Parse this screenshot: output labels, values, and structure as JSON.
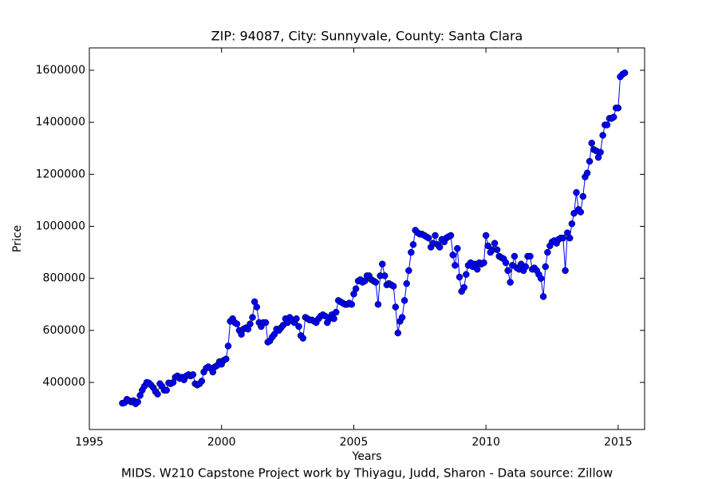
{
  "chart_data": {
    "type": "line",
    "title": "ZIP: 94087, City: Sunnyvale, County: Santa Clara",
    "xlabel": "Years",
    "ylabel": "Price",
    "footnote": "MIDS. W210 Capstone Project work by Thiyagu, Judd, Sharon  -  Data source: Zillow",
    "xlim": [
      1995,
      2016
    ],
    "ylim": [
      219000,
      1686000
    ],
    "xticks": [
      1995,
      2000,
      2005,
      2010,
      2015
    ],
    "yticks": [
      400000,
      600000,
      800000,
      1000000,
      1200000,
      1400000,
      1600000
    ],
    "x": [
      1996.25,
      1996.33,
      1996.42,
      1996.5,
      1996.58,
      1996.67,
      1996.75,
      1996.83,
      1996.92,
      1997,
      1997.08,
      1997.17,
      1997.25,
      1997.33,
      1997.42,
      1997.5,
      1997.58,
      1997.67,
      1997.75,
      1997.83,
      1997.92,
      1998,
      1998.08,
      1998.17,
      1998.25,
      1998.33,
      1998.42,
      1998.5,
      1998.58,
      1998.67,
      1998.75,
      1998.83,
      1998.92,
      1999,
      1999.08,
      1999.17,
      1999.25,
      1999.33,
      1999.42,
      1999.5,
      1999.58,
      1999.67,
      1999.75,
      1999.83,
      1999.92,
      2000,
      2000.08,
      2000.17,
      2000.25,
      2000.33,
      2000.42,
      2000.5,
      2000.58,
      2000.67,
      2000.75,
      2000.83,
      2000.92,
      2001,
      2001.08,
      2001.17,
      2001.25,
      2001.33,
      2001.42,
      2001.5,
      2001.58,
      2001.67,
      2001.75,
      2001.83,
      2001.92,
      2002,
      2002.08,
      2002.17,
      2002.25,
      2002.33,
      2002.42,
      2002.5,
      2002.58,
      2002.67,
      2002.75,
      2002.83,
      2002.92,
      2003,
      2003.08,
      2003.17,
      2003.25,
      2003.33,
      2003.42,
      2003.5,
      2003.58,
      2003.67,
      2003.75,
      2003.83,
      2003.92,
      2004,
      2004.08,
      2004.17,
      2004.25,
      2004.33,
      2004.42,
      2004.5,
      2004.58,
      2004.67,
      2004.75,
      2004.83,
      2004.92,
      2005,
      2005.08,
      2005.17,
      2005.25,
      2005.33,
      2005.42,
      2005.5,
      2005.58,
      2005.67,
      2005.75,
      2005.83,
      2005.92,
      2006,
      2006.08,
      2006.17,
      2006.25,
      2006.33,
      2006.42,
      2006.5,
      2006.58,
      2006.67,
      2006.75,
      2006.83,
      2006.92,
      2007,
      2007.08,
      2007.17,
      2007.25,
      2007.33,
      2007.42,
      2007.5,
      2007.58,
      2007.67,
      2007.75,
      2007.83,
      2007.92,
      2008,
      2008.08,
      2008.17,
      2008.25,
      2008.33,
      2008.42,
      2008.5,
      2008.58,
      2008.67,
      2008.75,
      2008.83,
      2008.92,
      2009,
      2009.08,
      2009.17,
      2009.25,
      2009.33,
      2009.42,
      2009.5,
      2009.58,
      2009.67,
      2009.75,
      2009.83,
      2009.92,
      2010,
      2010.08,
      2010.17,
      2010.25,
      2010.33,
      2010.42,
      2010.5,
      2010.58,
      2010.67,
      2010.75,
      2010.83,
      2010.92,
      2011,
      2011.08,
      2011.17,
      2011.25,
      2011.33,
      2011.42,
      2011.5,
      2011.58,
      2011.67,
      2011.75,
      2011.83,
      2011.92,
      2012,
      2012.08,
      2012.17,
      2012.25,
      2012.33,
      2012.42,
      2012.5,
      2012.58,
      2012.67,
      2012.75,
      2012.83,
      2012.92,
      2013,
      2013.08,
      2013.17,
      2013.25,
      2013.33,
      2013.42,
      2013.5,
      2013.58,
      2013.67,
      2013.75,
      2013.83,
      2013.92,
      2014,
      2014.08,
      2014.17,
      2014.25,
      2014.33,
      2014.42,
      2014.5,
      2014.58,
      2014.67,
      2014.75,
      2014.83,
      2014.92,
      2015,
      2015.08,
      2015.17,
      2015.25
    ],
    "series": [
      {
        "color": "#0000ff",
        "values": [
          320000,
          322000,
          335000,
          330000,
          325000,
          330000,
          318000,
          325000,
          350000,
          370000,
          385000,
          400000,
          398000,
          390000,
          380000,
          365000,
          355000,
          395000,
          385000,
          370000,
          370000,
          398000,
          395000,
          400000,
          420000,
          425000,
          415000,
          420000,
          410000,
          425000,
          430000,
          425000,
          430000,
          395000,
          390000,
          395000,
          405000,
          440000,
          455000,
          460000,
          455000,
          440000,
          460000,
          465000,
          480000,
          470000,
          485000,
          490000,
          540000,
          635000,
          645000,
          630000,
          625000,
          600000,
          585000,
          605000,
          610000,
          605000,
          625000,
          650000,
          710000,
          690000,
          630000,
          615000,
          630000,
          630000,
          555000,
          560000,
          575000,
          585000,
          605000,
          600000,
          610000,
          620000,
          645000,
          630000,
          650000,
          640000,
          630000,
          645000,
          615000,
          580000,
          570000,
          650000,
          645000,
          640000,
          640000,
          635000,
          630000,
          645000,
          655000,
          660000,
          655000,
          630000,
          645000,
          660000,
          645000,
          670000,
          715000,
          710000,
          705000,
          700000,
          700000,
          705000,
          700000,
          740000,
          760000,
          790000,
          795000,
          785000,
          790000,
          810000,
          810000,
          795000,
          790000,
          785000,
          700000,
          810000,
          855000,
          810000,
          775000,
          780000,
          775000,
          770000,
          690000,
          590000,
          635000,
          650000,
          715000,
          780000,
          830000,
          900000,
          930000,
          985000,
          975000,
          970000,
          970000,
          965000,
          960000,
          955000,
          920000,
          935000,
          965000,
          930000,
          920000,
          950000,
          940000,
          955000,
          960000,
          965000,
          890000,
          850000,
          915000,
          805000,
          750000,
          765000,
          815000,
          850000,
          860000,
          845000,
          855000,
          835000,
          860000,
          855000,
          860000,
          965000,
          925000,
          900000,
          910000,
          935000,
          910000,
          885000,
          880000,
          875000,
          860000,
          830000,
          785000,
          850000,
          885000,
          840000,
          835000,
          855000,
          830000,
          845000,
          885000,
          885000,
          835000,
          840000,
          830000,
          815000,
          800000,
          730000,
          845000,
          900000,
          925000,
          940000,
          945000,
          935000,
          950000,
          955000,
          955000,
          830000,
          975000,
          955000,
          1010000,
          1050000,
          1130000,
          1065000,
          1055000,
          1115000,
          1190000,
          1205000,
          1250000,
          1320000,
          1295000,
          1290000,
          1265000,
          1285000,
          1350000,
          1390000,
          1390000,
          1415000,
          1415000,
          1420000,
          1455000,
          1455000,
          1575000,
          1585000,
          1590000
        ]
      }
    ]
  }
}
